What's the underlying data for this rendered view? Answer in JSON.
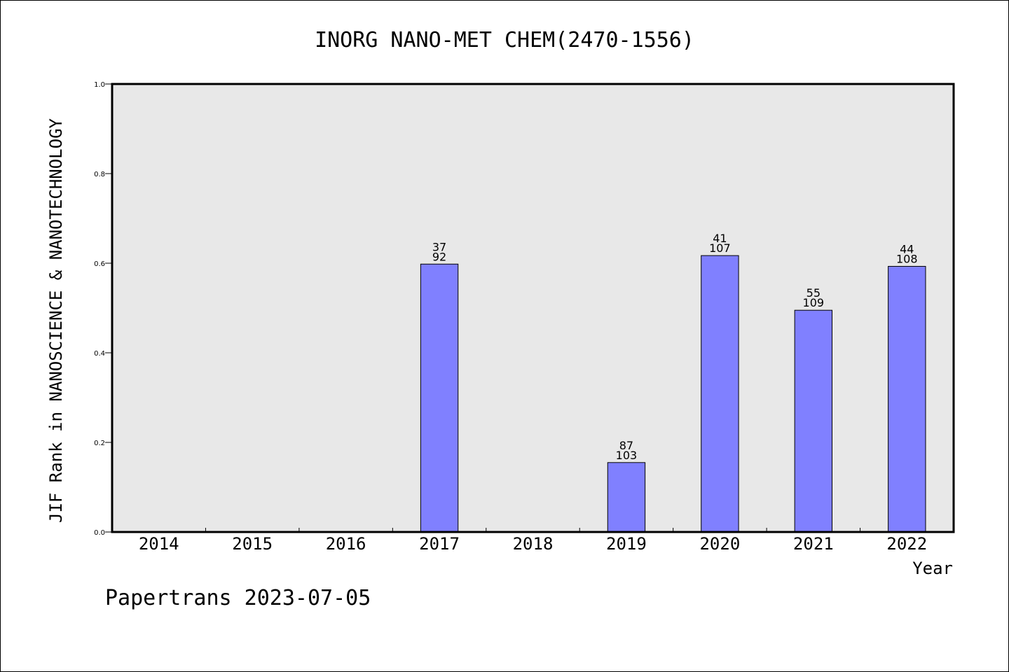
{
  "colors": {
    "bar": "#8080ff",
    "plot_background": "#e8e8e8",
    "axis": "#000000"
  },
  "footer": "Papertrans 2023-07-05",
  "chart_data": {
    "type": "bar",
    "title": "INORG NANO-MET CHEM(2470-1556)",
    "xlabel": "Year",
    "ylabel": "JIF Rank in NANOSCIENCE & NANOTECHNOLOGY",
    "ylim": [
      0,
      1.0
    ],
    "yticks": [
      "0.0",
      "0.2",
      "0.4",
      "0.6",
      "0.8",
      "1.0"
    ],
    "grid": false,
    "categories": [
      "2014",
      "2015",
      "2016",
      "2017",
      "2018",
      "2019",
      "2020",
      "2021",
      "2022"
    ],
    "values": [
      null,
      null,
      null,
      0.598,
      null,
      0.155,
      0.617,
      0.495,
      0.593
    ],
    "rank": [
      null,
      null,
      null,
      "37",
      null,
      "87",
      "41",
      "55",
      "44"
    ],
    "total": [
      null,
      null,
      null,
      "92",
      null,
      "103",
      "107",
      "109",
      "108"
    ]
  }
}
